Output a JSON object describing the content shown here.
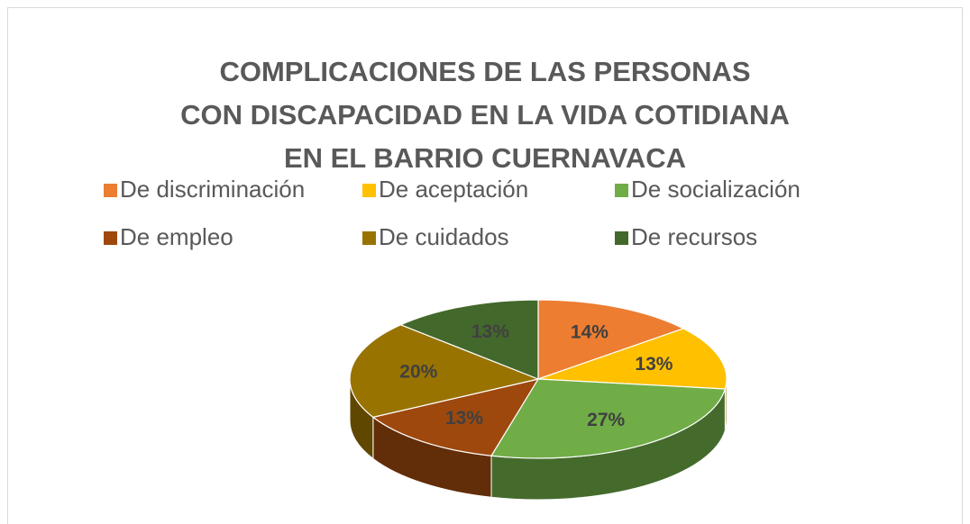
{
  "chart_data": {
    "type": "pie3d",
    "title": [
      "COMPLICACIONES DE LAS PERSONAS",
      "CON DISCAPACIDAD EN LA VIDA COTIDIANA",
      "EN EL BARRIO CUERNAVACA"
    ],
    "categories": [
      "De discriminación",
      "De aceptación",
      "De socialización",
      "De empleo",
      "De cuidados",
      "De recursos"
    ],
    "values": [
      14,
      13,
      27,
      13,
      20,
      13
    ],
    "value_labels": [
      "14%",
      "13%",
      "27%",
      "13%",
      "20%",
      "13%"
    ],
    "colors": [
      "#ED7D31",
      "#FFC000",
      "#70AD47",
      "#9E480E",
      "#997300",
      "#43682B"
    ],
    "legend": "top"
  }
}
